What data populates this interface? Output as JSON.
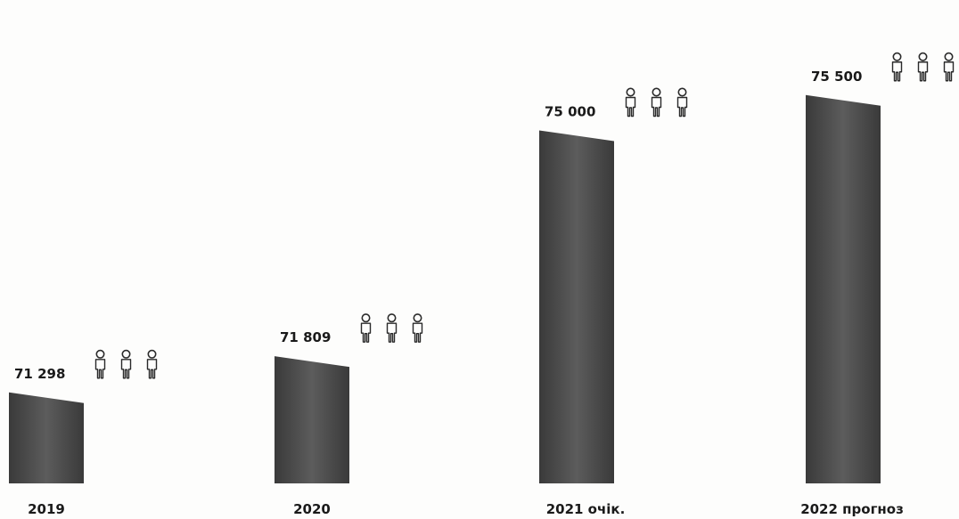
{
  "chart_data": {
    "type": "bar",
    "title": "",
    "xlabel": "",
    "ylabel": "",
    "categories": [
      "2019",
      "2020",
      "2021 очік.",
      "2022 прогноз"
    ],
    "values": [
      71298,
      71809,
      75000,
      75500
    ],
    "value_labels": [
      "71 298",
      "71 809",
      "75 000",
      "75 500"
    ],
    "ylim": [
      70000,
      76000
    ],
    "grid": false,
    "legend": "none",
    "bar_color": "#3a3a3a",
    "bar_color_light": "#5c5c5c",
    "icon": "person-icon",
    "icons_per_bar": 3
  }
}
